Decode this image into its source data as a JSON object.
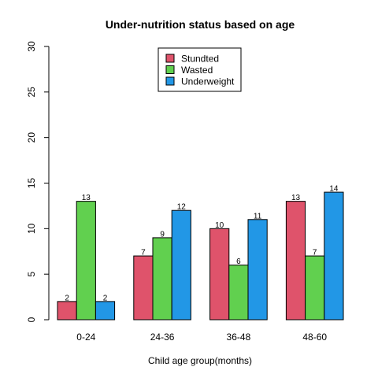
{
  "chart_data": {
    "type": "bar",
    "title": "Under-nutrition status based on age",
    "xlabel": "Child age group(months)",
    "ylabel": "",
    "ylim": [
      0,
      30
    ],
    "yticks": [
      0,
      5,
      10,
      15,
      20,
      25,
      30
    ],
    "categories": [
      "0-24",
      "24-36",
      "36-48",
      "48-60"
    ],
    "series": [
      {
        "name": "Stundted",
        "color": "#DF536B",
        "values": [
          2,
          7,
          10,
          13
        ]
      },
      {
        "name": "Wasted",
        "color": "#61D04F",
        "values": [
          13,
          9,
          6,
          7
        ]
      },
      {
        "name": "Underweight",
        "color": "#2297E6",
        "values": [
          2,
          12,
          11,
          14
        ]
      }
    ],
    "legend_position": "top-center",
    "grid": false
  }
}
